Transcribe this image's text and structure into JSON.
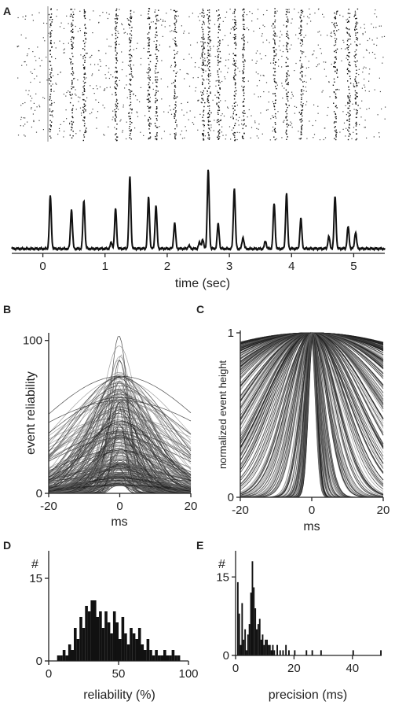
{
  "panels": {
    "A": {
      "letter": "A"
    },
    "B": {
      "letter": "B"
    },
    "C": {
      "letter": "C"
    },
    "D": {
      "letter": "D"
    },
    "E": {
      "letter": "E"
    }
  },
  "colors": {
    "ink": "#111111",
    "gray": "#555555",
    "axis": "#222222"
  },
  "chart_data": [
    {
      "id": "A-raster",
      "type": "scatter",
      "description_hidden": true,
      "xlim": [
        -0.5,
        5.5
      ],
      "trials": 40,
      "event_times": [
        0.12,
        0.46,
        0.66,
        1.17,
        1.4,
        1.7,
        1.82,
        2.12,
        2.57,
        2.66,
        2.82,
        3.08,
        3.22,
        3.72,
        3.92,
        4.15,
        4.7,
        4.91,
        5.03
      ]
    },
    {
      "id": "A-psth",
      "type": "line",
      "xlabel": "time (sec)",
      "xlim": [
        -0.5,
        5.5
      ],
      "ylim": [
        0,
        100
      ],
      "xticks": [
        0,
        1,
        2,
        3,
        4,
        5
      ],
      "peaks": [
        {
          "t": 0.12,
          "h": 70
        },
        {
          "t": 0.46,
          "h": 52
        },
        {
          "t": 0.66,
          "h": 64
        },
        {
          "t": 1.1,
          "h": 8
        },
        {
          "t": 1.17,
          "h": 53
        },
        {
          "t": 1.4,
          "h": 95
        },
        {
          "t": 1.7,
          "h": 68
        },
        {
          "t": 1.82,
          "h": 57
        },
        {
          "t": 2.12,
          "h": 34
        },
        {
          "t": 2.35,
          "h": 4
        },
        {
          "t": 2.52,
          "h": 8
        },
        {
          "t": 2.57,
          "h": 12
        },
        {
          "t": 2.66,
          "h": 104
        },
        {
          "t": 2.82,
          "h": 33
        },
        {
          "t": 3.08,
          "h": 80
        },
        {
          "t": 3.22,
          "h": 15
        },
        {
          "t": 3.58,
          "h": 10
        },
        {
          "t": 3.72,
          "h": 60
        },
        {
          "t": 3.92,
          "h": 73
        },
        {
          "t": 4.15,
          "h": 40
        },
        {
          "t": 4.6,
          "h": 16
        },
        {
          "t": 4.7,
          "h": 70
        },
        {
          "t": 4.91,
          "h": 29
        },
        {
          "t": 5.03,
          "h": 22
        }
      ]
    },
    {
      "id": "B",
      "type": "line",
      "xlabel": "ms",
      "ylabel": "event reliability",
      "xlim": [
        -20,
        20
      ],
      "ylim": [
        0,
        105
      ],
      "xticks": [
        -20,
        0,
        20
      ],
      "yticks": [
        0,
        100
      ],
      "curve_count": 260,
      "peak_range": [
        5,
        105
      ],
      "width_range_ms": [
        1.5,
        28
      ]
    },
    {
      "id": "C",
      "type": "line",
      "xlabel": "ms",
      "ylabel": "normalized event height",
      "xlim": [
        -20,
        20
      ],
      "ylim": [
        0,
        1
      ],
      "xticks": [
        -20,
        0,
        20
      ],
      "yticks": [
        0,
        1
      ],
      "curve_count": 260,
      "width_range_ms": [
        1.2,
        60
      ]
    },
    {
      "id": "D",
      "type": "bar",
      "xlabel": "reliability (%)",
      "ylabel": "#",
      "xlim": [
        0,
        100
      ],
      "ylim": [
        0,
        20
      ],
      "xticks": [
        0,
        50,
        100
      ],
      "yticks": [
        0,
        15
      ],
      "bin_width": 2,
      "bin_starts": [
        6,
        8,
        10,
        12,
        14,
        16,
        18,
        20,
        22,
        24,
        26,
        28,
        30,
        32,
        34,
        36,
        38,
        40,
        42,
        44,
        46,
        48,
        50,
        52,
        54,
        56,
        58,
        60,
        62,
        64,
        66,
        68,
        70,
        72,
        74,
        76,
        78,
        80,
        82,
        84,
        86,
        88,
        90,
        92
      ],
      "values": [
        1,
        1,
        2,
        1,
        3,
        2,
        6,
        4,
        8,
        6,
        10,
        9,
        11,
        11,
        8,
        9,
        6,
        9,
        7,
        5,
        9,
        7,
        4,
        8,
        5,
        3,
        6,
        5,
        4,
        6,
        3,
        2,
        4,
        2,
        1,
        2,
        1,
        1,
        2,
        1,
        1,
        2,
        1,
        1
      ]
    },
    {
      "id": "E",
      "type": "bar",
      "xlabel": "precision (ms)",
      "ylabel": "#",
      "xlim": [
        0,
        50
      ],
      "ylim": [
        0,
        20
      ],
      "xticks": [
        0,
        20,
        40
      ],
      "yticks": [
        0,
        15
      ],
      "bin_width": 0.5,
      "bin_starts": [
        0.5,
        1.0,
        1.5,
        2.0,
        2.5,
        3.0,
        3.5,
        4.0,
        4.5,
        5.0,
        5.5,
        6.0,
        6.5,
        7.0,
        7.5,
        8.0,
        8.5,
        9.0,
        9.5,
        10.0,
        10.5,
        11.0,
        11.5,
        12.0,
        12.5,
        13.0,
        14.0,
        15.0,
        16.0,
        17.0,
        18.0,
        20.0,
        24.0,
        26.0,
        29.0,
        40.0,
        49.5
      ],
      "values": [
        14,
        8,
        2,
        10,
        3,
        5,
        1,
        4,
        6,
        12,
        18,
        13,
        9,
        5,
        6,
        7,
        3,
        4,
        2,
        3,
        3,
        2,
        2,
        1,
        2,
        1,
        2,
        1,
        1,
        2,
        1,
        1,
        1,
        1,
        1,
        1,
        1
      ]
    }
  ]
}
